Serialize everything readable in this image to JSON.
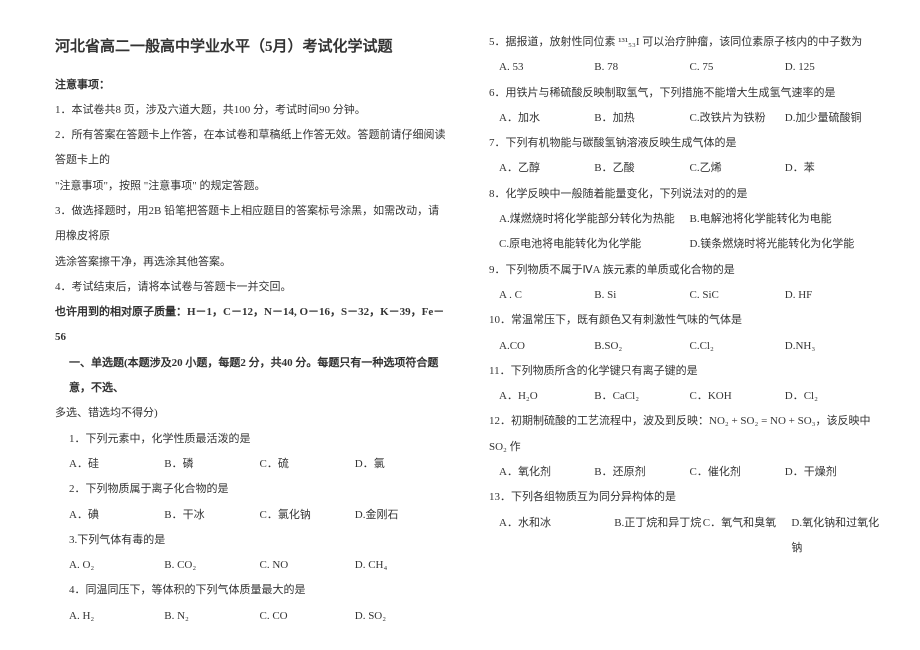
{
  "title": "河北省高二一般高中学业水平（5月）考试化学试题",
  "noticeHeader": "注意事项：",
  "notices": [
    "1．本试卷共8 页，涉及六道大题，共100 分，考试时间90 分钟。",
    "2．所有答案在答题卡上作答，在本试卷和草稿纸上作答无效。答题前请仔细阅读答题卡上的",
    "\"注意事项\"，按照 \"注意事项\" 的规定答题。",
    "3．做选择题时，用2B 铅笔把答题卡上相应题目的答案标号涂黑，如需改动，请用橡皮将原",
    "选涂答案擦干净，再选涂其他答案。",
    "4．考试结束后，请将本试卷与答题卡一并交回。"
  ],
  "atomicMass": "也许用到的相对原子质量：H－1，C－12，N－14, O－16，S－32，K－39，Fe－56",
  "section1": "一、单选题(本题涉及20 小题，每题2 分，共40 分。每题只有一种选项符合题意，不选、",
  "section1b": "多选、错选均不得分)",
  "q1": {
    "text": "1．下列元素中，化学性质最活泼的是",
    "opts": [
      "A．硅",
      "B．磷",
      "C．硫",
      "D．氯"
    ]
  },
  "q2": {
    "text": "2．下列物质属于离子化合物的是",
    "opts": [
      "A．碘",
      "B．干冰",
      "C．氯化钠",
      "D.金刚石"
    ]
  },
  "q3": {
    "text": "3.下列气体有毒的是",
    "opts": [
      "A. O₂",
      "B. CO₂",
      "C. NO",
      "D. CH₄"
    ]
  },
  "q4": {
    "text": "4．同温同压下，等体积的下列气体质量最大的是",
    "opts": [
      "A. H₂",
      "B. N₂",
      "C. CO",
      "D. SO₂"
    ]
  },
  "q5": {
    "text": "5．据报道，放射性同位素 ¹³¹₅₃I 可以治疗肿瘤，该同位素原子核内的中子数为",
    "opts": [
      "A. 53",
      "B. 78",
      "C. 75",
      "D. 125"
    ]
  },
  "q6": {
    "text": "6．用铁片与稀硫酸反映制取氢气，下列措施不能增大生成氢气速率的是",
    "opts": [
      "A．加水",
      "B．加热",
      "C.改铁片为铁粉",
      "D.加少量硫酸铜"
    ]
  },
  "q7": {
    "text": "7．下列有机物能与碳酸氢钠溶液反映生成气体的是",
    "opts": [
      "A．乙醇",
      "B．乙酸",
      "C.乙烯",
      "D．苯"
    ]
  },
  "q8": {
    "text": "8．化学反映中一般随着能量变化，下列说法对的的是",
    "optsA": "A.煤燃烧时将化学能部分转化为热能",
    "optsB": "B.电解池将化学能转化为电能",
    "optsC": "C.原电池将电能转化为化学能",
    "optsD": "D.镁条燃烧时将光能转化为化学能"
  },
  "q9": {
    "text": "9．下列物质不属于ⅣA 族元素的单质或化合物的是",
    "opts": [
      "A . C",
      "B. Si",
      "C. SiC",
      "D. HF"
    ]
  },
  "q10": {
    "text": "10．常温常压下，既有颜色又有刺激性气味的气体是",
    "opts": [
      "A.CO",
      "B.SO₂",
      "C.Cl₂",
      "D.NH₃"
    ]
  },
  "q11": {
    "text": "11．下列物质所含的化学键只有离子键的是",
    "opts": [
      "A．H₂O",
      "B．CaCl₂",
      "C．KOH",
      "D．Cl₂"
    ]
  },
  "q12": {
    "text": "12．初期制硫酸的工艺流程中，波及到反映：NO₂ + SO₂ = NO + SO₃，该反映中 SO₂ 作",
    "opts": [
      "A．氧化剂",
      "B．还原剂",
      "C．催化剂",
      "D．干燥剂"
    ]
  },
  "q13": {
    "text": "13．下列各组物质互为同分异构体的是",
    "opts": [
      "A．水和冰",
      "B.正丁烷和异丁烷",
      "C．氧气和臭氧",
      "D.氧化钠和过氧化钠"
    ]
  }
}
